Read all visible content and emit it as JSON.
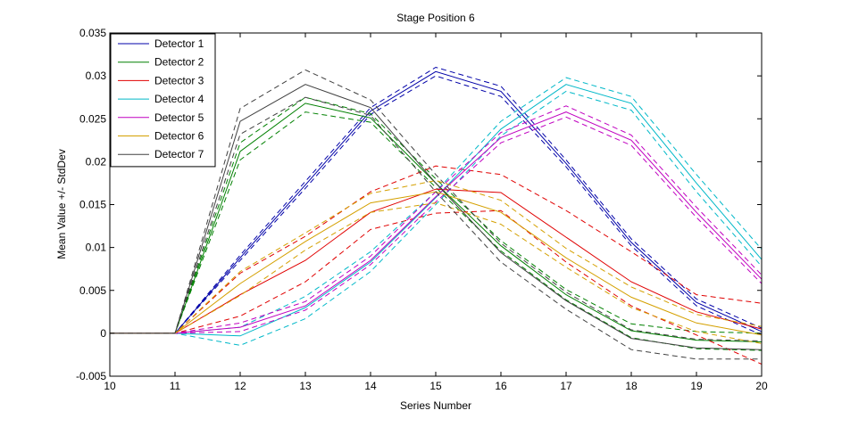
{
  "chart_data": {
    "type": "line",
    "title": "Stage Position 6",
    "xlabel": "Series Number",
    "ylabel": "Mean Value +/- StdDev",
    "xlim": [
      10,
      20
    ],
    "ylim": [
      -0.005,
      0.035
    ],
    "xticks": [
      10,
      11,
      12,
      13,
      14,
      15,
      16,
      17,
      18,
      19,
      20
    ],
    "yticks": [
      -0.005,
      0,
      0.005,
      0.01,
      0.015,
      0.02,
      0.025,
      0.03,
      0.035
    ],
    "ytick_labels": [
      "-0.005",
      "0",
      "0.005",
      "0.01",
      "0.015",
      "0.02",
      "0.025",
      "0.03",
      "0.035"
    ],
    "grid": false,
    "legend_position": "top-left",
    "x": [
      10,
      11,
      12,
      13,
      14,
      15,
      16,
      17,
      18,
      19,
      20
    ],
    "series": [
      {
        "name": "Detector 1",
        "color": "#0000a8",
        "mean": [
          0,
          0,
          0.0088,
          0.0173,
          0.0259,
          0.0305,
          0.0282,
          0.0198,
          0.0106,
          0.0036,
          0.0002
        ],
        "upper": [
          0,
          0,
          0.0091,
          0.0177,
          0.0263,
          0.031,
          0.0288,
          0.0202,
          0.011,
          0.004,
          0.0006
        ],
        "lower": [
          0,
          0,
          0.0085,
          0.0169,
          0.0255,
          0.03,
          0.0276,
          0.0194,
          0.0102,
          0.0032,
          -0.0002
        ]
      },
      {
        "name": "Detector 2",
        "color": "#008000",
        "mean": [
          0,
          0,
          0.0212,
          0.0268,
          0.0251,
          0.0175,
          0.0102,
          0.0045,
          0.0003,
          -0.0008,
          -0.001
        ],
        "upper": [
          0,
          0,
          0.0222,
          0.0275,
          0.0256,
          0.018,
          0.0108,
          0.0051,
          0.0011,
          0.0002,
          0.0
        ],
        "lower": [
          0,
          0,
          0.0202,
          0.0258,
          0.0246,
          0.017,
          0.0096,
          0.0039,
          -0.0005,
          -0.0018,
          -0.002
        ]
      },
      {
        "name": "Detector 3",
        "color": "#e00000",
        "mean": [
          0,
          0,
          0.0045,
          0.0085,
          0.0141,
          0.0168,
          0.0164,
          0.0112,
          0.006,
          0.0025,
          0.0005
        ],
        "upper": [
          0,
          0,
          0.007,
          0.0113,
          0.0165,
          0.0195,
          0.0185,
          0.0143,
          0.0095,
          0.0045,
          0.0035
        ],
        "lower": [
          0,
          0,
          0.002,
          0.006,
          0.0121,
          0.014,
          0.0143,
          0.0083,
          0.0032,
          -0.0002,
          -0.0036
        ]
      },
      {
        "name": "Detector 4",
        "color": "#00b8c8",
        "mean": [
          0,
          0,
          -0.0003,
          0.003,
          0.0083,
          0.0158,
          0.0238,
          0.029,
          0.0268,
          0.0175,
          0.0086
        ],
        "upper": [
          0,
          0,
          0.0007,
          0.0043,
          0.0095,
          0.0165,
          0.0247,
          0.0298,
          0.0276,
          0.0185,
          0.0098
        ],
        "lower": [
          0,
          0,
          -0.0014,
          0.0017,
          0.0072,
          0.015,
          0.023,
          0.0282,
          0.026,
          0.0165,
          0.0078
        ]
      },
      {
        "name": "Detector 5",
        "color": "#c000c0",
        "mean": [
          0,
          0,
          0.0007,
          0.0032,
          0.0085,
          0.0159,
          0.0228,
          0.0258,
          0.0225,
          0.0141,
          0.0063
        ],
        "upper": [
          0,
          0,
          0.0012,
          0.0037,
          0.009,
          0.0165,
          0.0234,
          0.0265,
          0.0231,
          0.0147,
          0.0068
        ],
        "lower": [
          0,
          0,
          0.0002,
          0.0027,
          0.008,
          0.0153,
          0.0222,
          0.0252,
          0.0219,
          0.0135,
          0.0058
        ]
      },
      {
        "name": "Detector 6",
        "color": "#d4a000",
        "mean": [
          0,
          0,
          0.0058,
          0.0107,
          0.0152,
          0.0165,
          0.0141,
          0.0088,
          0.0042,
          0.0012,
          -0.0002
        ],
        "upper": [
          0,
          0,
          0.0072,
          0.0117,
          0.0163,
          0.0178,
          0.0155,
          0.0099,
          0.0054,
          0.0022,
          0.0008
        ],
        "lower": [
          0,
          0,
          0.0044,
          0.0097,
          0.0141,
          0.0152,
          0.0127,
          0.0077,
          0.003,
          0.0002,
          -0.0012
        ]
      },
      {
        "name": "Detector 7",
        "color": "#404040",
        "mean": [
          0,
          0,
          0.0247,
          0.029,
          0.0263,
          0.0175,
          0.0094,
          0.0038,
          -0.0006,
          -0.0017,
          -0.0019
        ],
        "upper": [
          0,
          0,
          0.0262,
          0.0307,
          0.0272,
          0.0185,
          0.0105,
          0.0048,
          0.0004,
          -0.0007,
          -0.0009
        ],
        "lower": [
          0,
          0,
          0.0232,
          0.0275,
          0.0254,
          0.0165,
          0.0083,
          0.0028,
          -0.0019,
          -0.003,
          -0.003
        ]
      }
    ]
  }
}
